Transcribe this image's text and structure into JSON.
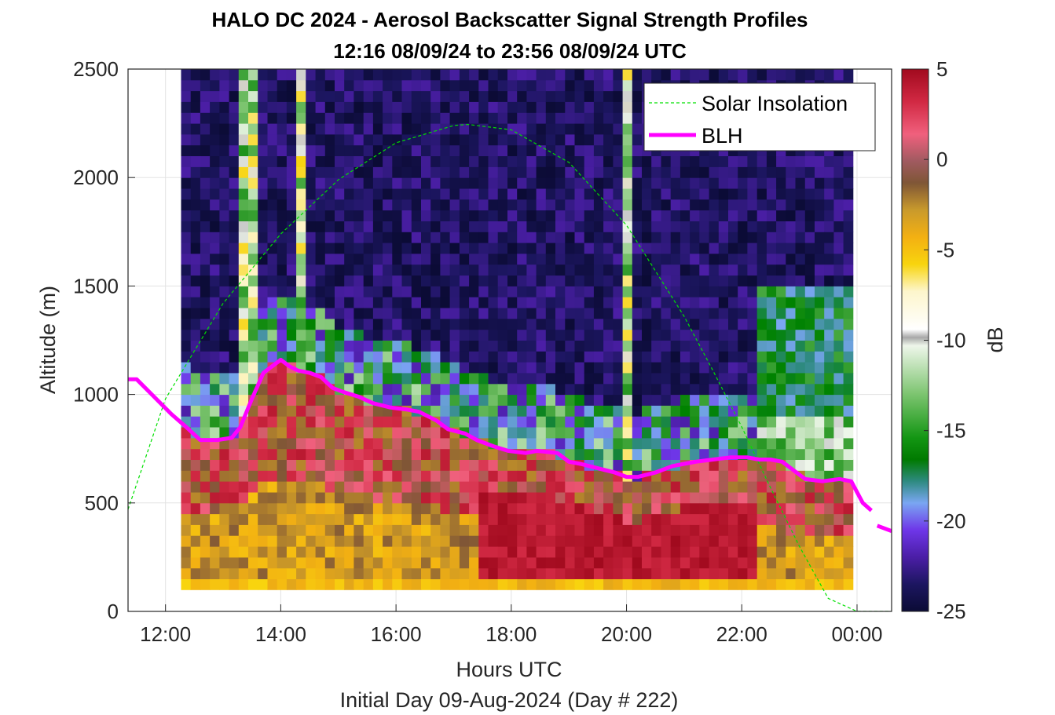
{
  "chart_data": {
    "type": "heatmap",
    "title": "HALO DC 2024 - Aerosol Backscatter Signal Strength Profiles",
    "subtitle": "12:16 08/09/24 to 23:56 08/09/24  UTC",
    "xlabel": "Hours UTC",
    "ylabel": "Altitude (m)",
    "footer": "Initial Day 09-Aug-2024 (Day # 222)",
    "x_unit": "hours UTC",
    "xlim": [
      11.35,
      24.6
    ],
    "ylim": [
      0,
      2500
    ],
    "x_ticks": [
      12,
      14,
      16,
      18,
      20,
      22,
      24
    ],
    "x_tick_labels": [
      "12:00",
      "14:00",
      "16:00",
      "18:00",
      "20:00",
      "22:00",
      "00:00"
    ],
    "y_ticks": [
      0,
      500,
      1000,
      1500,
      2000,
      2500
    ],
    "y_tick_labels": [
      "0",
      "500",
      "1000",
      "1500",
      "2000",
      "2500"
    ],
    "grid": true,
    "legend_position": "top-right",
    "colorbar": {
      "label": "dB",
      "range": [
        -25,
        5
      ],
      "ticks": [
        5,
        0,
        -5,
        -10,
        -15,
        -20,
        -25
      ],
      "tick_labels": [
        "5",
        "0",
        "-5",
        "-10",
        "-15",
        "-20",
        "-25"
      ]
    },
    "heatmap_grid": {
      "time_start": 12.27,
      "time_end": 23.93,
      "altitude_start": 100,
      "altitude_end": 2500,
      "altitude_step": 50
    },
    "series": [
      {
        "name": "Solar Insolation",
        "style": "dashed",
        "color": "#00e000",
        "x": [
          11.35,
          12.0,
          13.0,
          14.0,
          15.0,
          16.0,
          17.0,
          17.25,
          18.0,
          19.0,
          20.0,
          21.0,
          21.5,
          22.0,
          22.5,
          23.0,
          23.5,
          24.0,
          24.6
        ],
        "y": [
          470,
          980,
          1420,
          1740,
          1990,
          2160,
          2240,
          2245,
          2220,
          2070,
          1780,
          1360,
          1110,
          850,
          570,
          300,
          60,
          0,
          0
        ]
      },
      {
        "name": "BLH",
        "style": "solid",
        "color": "#ff00ff",
        "x": [
          11.35,
          11.5,
          11.8,
          12.1,
          12.4,
          12.6,
          12.9,
          13.15,
          13.3,
          13.5,
          13.7,
          13.85,
          14.0,
          14.15,
          14.3,
          14.5,
          14.7,
          14.9,
          15.1,
          15.35,
          15.6,
          15.9,
          16.2,
          16.4,
          16.7,
          16.9,
          17.2,
          17.4,
          17.7,
          17.95,
          18.25,
          18.45,
          18.8,
          19.0,
          19.2,
          19.5,
          19.8,
          20.0,
          20.2,
          20.5,
          20.8,
          21.0,
          21.2,
          21.5,
          21.8,
          22.1,
          22.3,
          22.5,
          22.7,
          22.9,
          23.1,
          23.4,
          23.7,
          23.9,
          24.1,
          24.25
        ],
        "y": [
          1070,
          1070,
          990,
          910,
          840,
          790,
          790,
          800,
          850,
          980,
          1100,
          1130,
          1160,
          1130,
          1110,
          1100,
          1080,
          1030,
          1010,
          990,
          960,
          940,
          930,
          920,
          880,
          840,
          820,
          790,
          760,
          740,
          730,
          740,
          730,
          690,
          680,
          660,
          640,
          620,
          620,
          640,
          670,
          680,
          690,
          700,
          710,
          710,
          700,
          700,
          690,
          650,
          610,
          600,
          610,
          600,
          500,
          465
        ]
      },
      {
        "name": "",
        "style": "solid",
        "color": "#ff00ff",
        "x": [
          24.35,
          24.6
        ],
        "y": [
          395,
          370
        ]
      }
    ]
  }
}
